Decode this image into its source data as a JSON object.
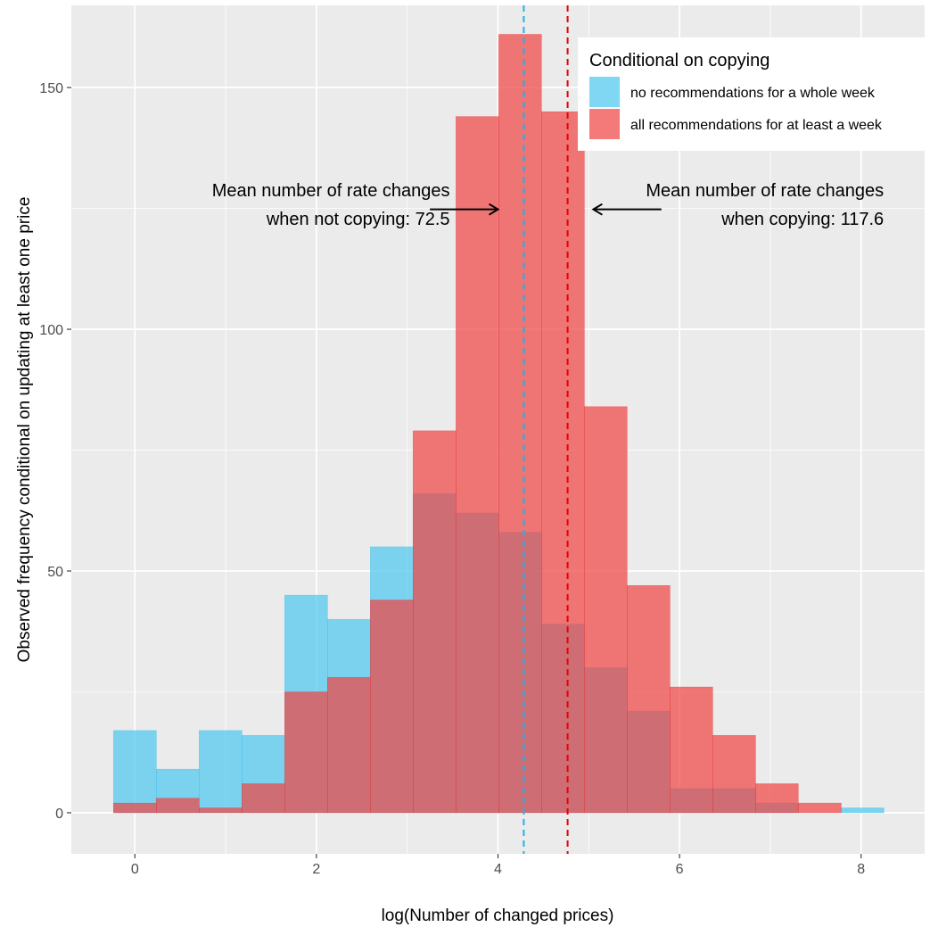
{
  "chart_data": {
    "type": "histogram",
    "xlabel": "log(Number of changed prices)",
    "ylabel": "Observed frequency conditional on updating at least one price",
    "xlim": [
      -0.7,
      8.7
    ],
    "ylim": [
      -8.5,
      167
    ],
    "x_ticks": [
      0,
      2,
      4,
      6,
      8
    ],
    "x_tick_labels": [
      "0",
      "2",
      "4",
      "6",
      "8"
    ],
    "y_ticks": [
      0,
      50,
      100,
      150
    ],
    "y_tick_labels": [
      "0",
      "50",
      "100",
      "150"
    ],
    "grid": true,
    "bin_width": 0.4715,
    "bin_starts": [
      -0.235,
      0.236,
      0.708,
      1.179,
      1.651,
      2.122,
      2.594,
      3.065,
      3.537,
      4.008,
      4.48,
      4.951,
      5.423,
      5.894,
      6.366,
      6.837,
      7.309,
      7.78
    ],
    "series": [
      {
        "name": "no recommendations for a whole week",
        "color": "#4dc8f0",
        "values": [
          17,
          9,
          17,
          16,
          45,
          40,
          55,
          66,
          62,
          58,
          39,
          30,
          21,
          5,
          5,
          2,
          0,
          1
        ]
      },
      {
        "name": "all recommendations for at least a week",
        "color": "#f04545",
        "values": [
          2,
          3,
          1,
          6,
          25,
          28,
          44,
          79,
          144,
          161,
          145,
          84,
          47,
          26,
          16,
          6,
          2,
          0
        ]
      }
    ],
    "mean_lines": [
      {
        "series": "no recommendations for a whole week",
        "x": 4.284,
        "color": "#1eb4e6",
        "style": "dashed"
      },
      {
        "series": "all recommendations for at least a week",
        "x": 4.767,
        "color": "#e60000",
        "style": "dashed"
      }
    ],
    "annotations": [
      {
        "lines": [
          "Mean number of rate changes",
          "when not copying: 72.5"
        ],
        "anchor": "end",
        "x": 3.47,
        "y": 127.5,
        "arrow_from": [
          3.25,
          124.8
        ],
        "arrow_to": [
          4.0,
          124.8
        ]
      },
      {
        "lines": [
          "Mean number of rate changes",
          "when copying: 117.6"
        ],
        "anchor": "end",
        "x": 8.25,
        "y": 127.5,
        "arrow_from": [
          5.8,
          124.8
        ],
        "arrow_to": [
          5.05,
          124.8
        ]
      }
    ],
    "legend": {
      "title": "Conditional on copying",
      "position": "top-right",
      "entries": [
        "no recommendations for a whole week",
        "all recommendations for at least a week"
      ]
    }
  }
}
